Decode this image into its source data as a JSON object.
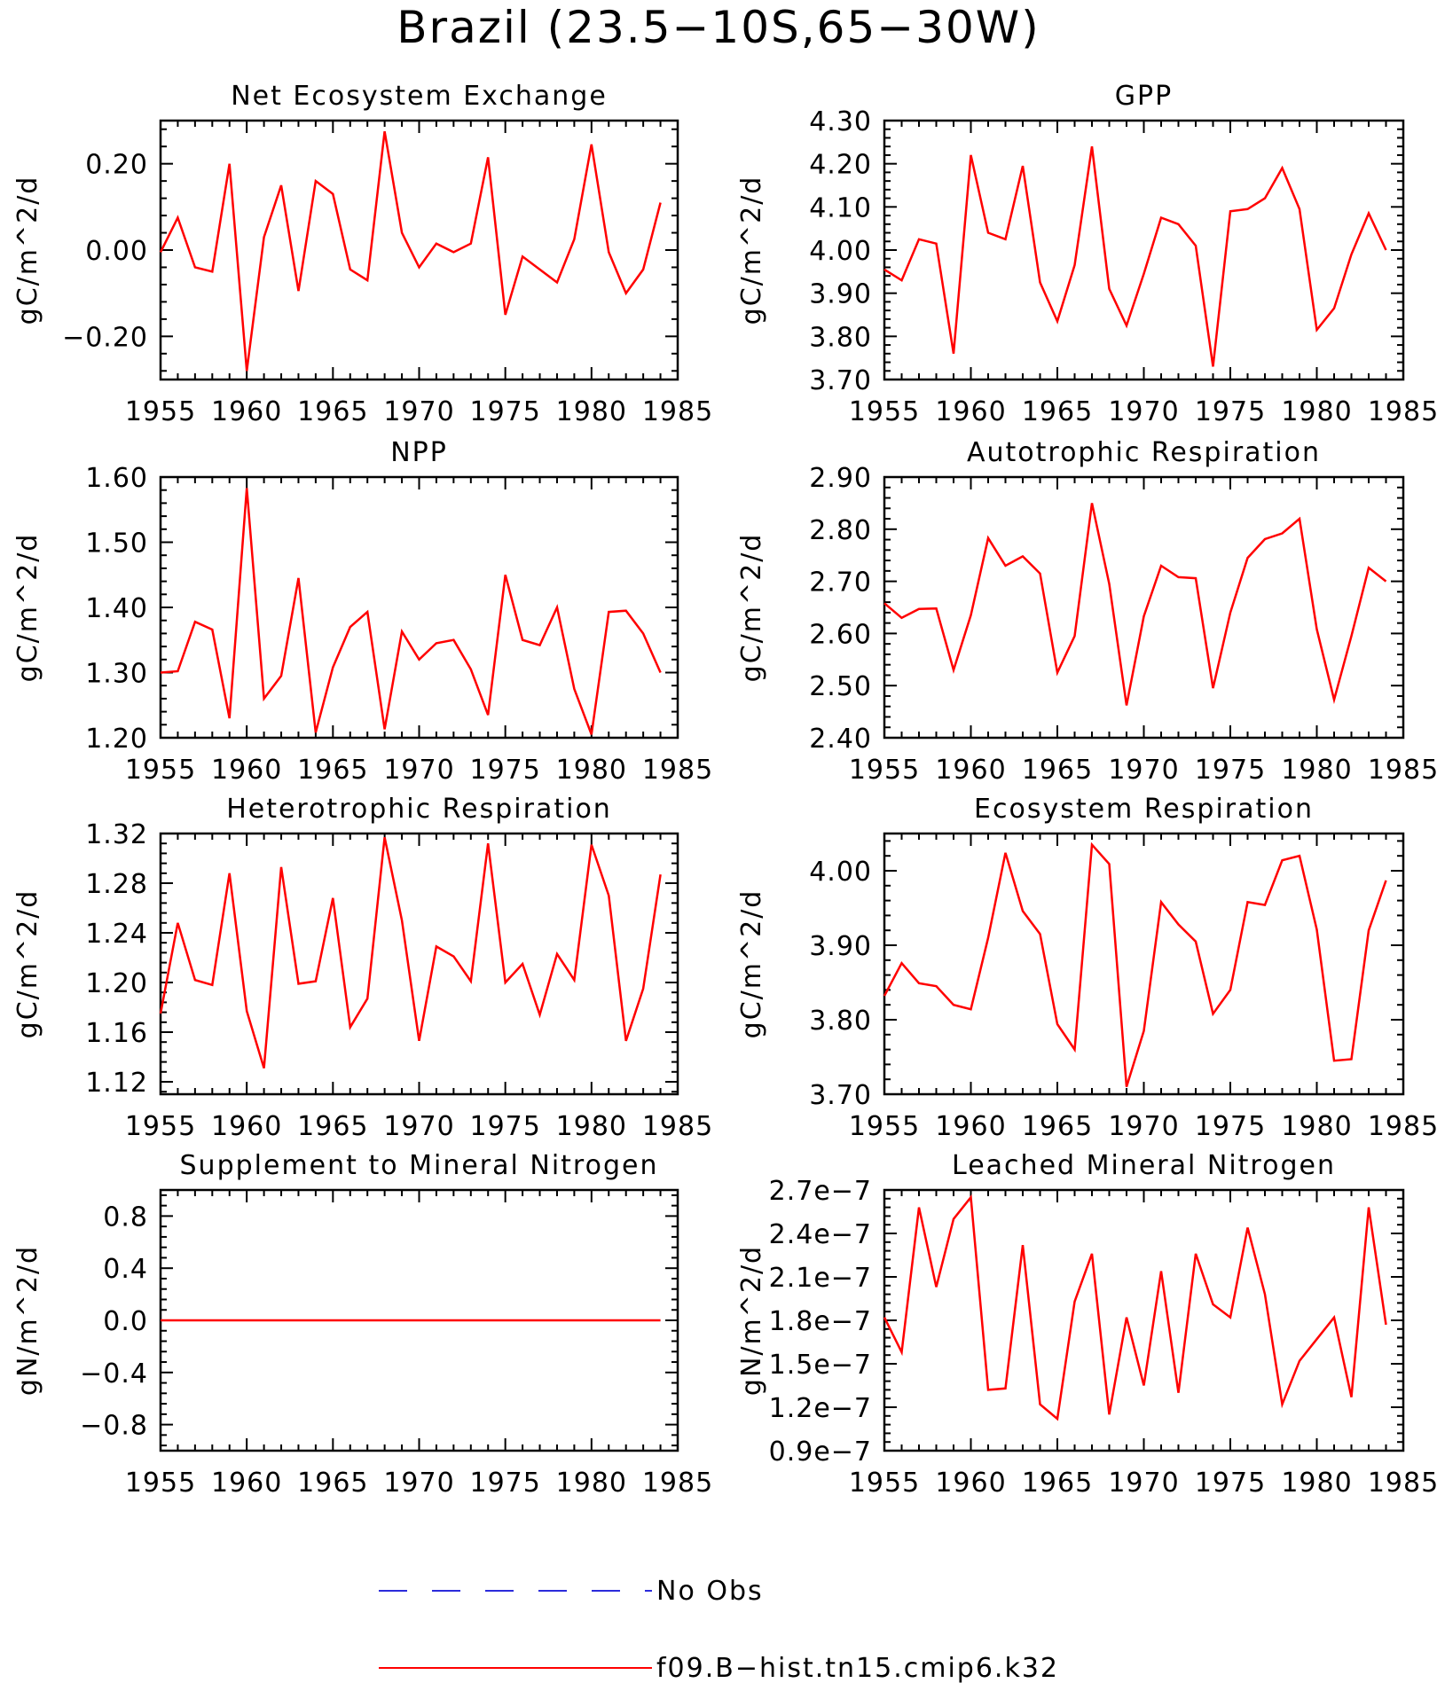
{
  "title": "Brazil (23.5−10S,65−30W)",
  "legend": {
    "entries": [
      {
        "label": "No Obs",
        "color": "#2b2bdb",
        "dash": true
      },
      {
        "label": "f09.B−hist.tn15.cmip6.k32",
        "color": "#ff0000",
        "dash": false
      }
    ]
  },
  "chart_data": [
    {
      "type": "line",
      "title": "Net Ecosystem Exchange",
      "ylabel": "gC/m^2/d",
      "xlim": [
        1955,
        1985
      ],
      "ylim": [
        -0.3,
        0.3
      ],
      "yticks": [
        -0.2,
        0.0,
        0.2
      ],
      "yticklabels": [
        "−0.20",
        "0.00",
        "0.20"
      ],
      "xticks": [
        1955,
        1960,
        1965,
        1970,
        1975,
        1980,
        1985
      ],
      "x": [
        1955,
        1956,
        1957,
        1958,
        1959,
        1960,
        1961,
        1962,
        1963,
        1964,
        1965,
        1966,
        1967,
        1968,
        1969,
        1970,
        1971,
        1972,
        1973,
        1974,
        1975,
        1976,
        1977,
        1978,
        1979,
        1980,
        1981,
        1982,
        1983,
        1984
      ],
      "series": [
        {
          "name": "f09.B−hist.tn15.cmip6.k32",
          "color": "#ff0000",
          "values": [
            -0.005,
            0.075,
            -0.04,
            -0.05,
            0.2,
            -0.28,
            0.03,
            0.15,
            -0.095,
            0.16,
            0.13,
            -0.045,
            -0.07,
            0.275,
            0.04,
            -0.04,
            0.015,
            -0.005,
            0.015,
            0.215,
            -0.15,
            -0.015,
            -0.045,
            -0.075,
            0.025,
            0.245,
            -0.005,
            -0.1,
            -0.045,
            0.11
          ]
        }
      ]
    },
    {
      "type": "line",
      "title": "GPP",
      "ylabel": "gC/m^2/d",
      "xlim": [
        1955,
        1985
      ],
      "ylim": [
        3.7,
        4.3
      ],
      "yticks": [
        3.7,
        3.8,
        3.9,
        4.0,
        4.1,
        4.2,
        4.3
      ],
      "yticklabels": [
        "3.70",
        "3.80",
        "3.90",
        "4.00",
        "4.10",
        "4.20",
        "4.30"
      ],
      "xticks": [
        1955,
        1960,
        1965,
        1970,
        1975,
        1980,
        1985
      ],
      "x": [
        1955,
        1956,
        1957,
        1958,
        1959,
        1960,
        1961,
        1962,
        1963,
        1964,
        1965,
        1966,
        1967,
        1968,
        1969,
        1970,
        1971,
        1972,
        1973,
        1974,
        1975,
        1976,
        1977,
        1978,
        1979,
        1980,
        1981,
        1982,
        1983,
        1984
      ],
      "series": [
        {
          "name": "f09.B−hist.tn15.cmip6.k32",
          "color": "#ff0000",
          "values": [
            3.955,
            3.93,
            4.025,
            4.015,
            3.76,
            4.22,
            4.04,
            4.025,
            4.195,
            3.925,
            3.835,
            3.965,
            4.24,
            3.91,
            3.825,
            3.945,
            4.075,
            4.06,
            4.01,
            3.73,
            4.09,
            4.095,
            4.12,
            4.19,
            4.095,
            3.815,
            3.865,
            3.99,
            4.085,
            4.0
          ]
        }
      ]
    },
    {
      "type": "line",
      "title": "NPP",
      "ylabel": "gC/m^2/d",
      "xlim": [
        1955,
        1985
      ],
      "ylim": [
        1.2,
        1.6
      ],
      "yticks": [
        1.2,
        1.3,
        1.4,
        1.5,
        1.6
      ],
      "yticklabels": [
        "1.20",
        "1.30",
        "1.40",
        "1.50",
        "1.60"
      ],
      "xticks": [
        1955,
        1960,
        1965,
        1970,
        1975,
        1980,
        1985
      ],
      "x": [
        1955,
        1956,
        1957,
        1958,
        1959,
        1960,
        1961,
        1962,
        1963,
        1964,
        1965,
        1966,
        1967,
        1968,
        1969,
        1970,
        1971,
        1972,
        1973,
        1974,
        1975,
        1976,
        1977,
        1978,
        1979,
        1980,
        1981,
        1982,
        1983,
        1984
      ],
      "series": [
        {
          "name": "f09.B−hist.tn15.cmip6.k32",
          "color": "#ff0000",
          "values": [
            1.3,
            1.302,
            1.378,
            1.366,
            1.23,
            1.583,
            1.26,
            1.295,
            1.445,
            1.208,
            1.308,
            1.37,
            1.393,
            1.213,
            1.363,
            1.32,
            1.345,
            1.35,
            1.305,
            1.235,
            1.45,
            1.35,
            1.342,
            1.4,
            1.275,
            1.205,
            1.393,
            1.395,
            1.36,
            1.3
          ]
        }
      ]
    },
    {
      "type": "line",
      "title": "Autotrophic Respiration",
      "ylabel": "gC/m^2/d",
      "xlim": [
        1955,
        1985
      ],
      "ylim": [
        2.4,
        2.9
      ],
      "yticks": [
        2.4,
        2.5,
        2.6,
        2.7,
        2.8,
        2.9
      ],
      "yticklabels": [
        "2.40",
        "2.50",
        "2.60",
        "2.70",
        "2.80",
        "2.90"
      ],
      "xticks": [
        1955,
        1960,
        1965,
        1970,
        1975,
        1980,
        1985
      ],
      "x": [
        1955,
        1956,
        1957,
        1958,
        1959,
        1960,
        1961,
        1962,
        1963,
        1964,
        1965,
        1966,
        1967,
        1968,
        1969,
        1970,
        1971,
        1972,
        1973,
        1974,
        1975,
        1976,
        1977,
        1978,
        1979,
        1980,
        1981,
        1982,
        1983,
        1984
      ],
      "series": [
        {
          "name": "f09.B−hist.tn15.cmip6.k32",
          "color": "#ff0000",
          "values": [
            2.658,
            2.63,
            2.647,
            2.648,
            2.53,
            2.635,
            2.783,
            2.73,
            2.748,
            2.715,
            2.525,
            2.595,
            2.85,
            2.695,
            2.462,
            2.633,
            2.73,
            2.708,
            2.706,
            2.495,
            2.64,
            2.745,
            2.781,
            2.792,
            2.82,
            2.608,
            2.473,
            2.595,
            2.726,
            2.7
          ]
        }
      ]
    },
    {
      "type": "line",
      "title": "Heterotrophic Respiration",
      "ylabel": "gC/m^2/d",
      "xlim": [
        1955,
        1985
      ],
      "ylim": [
        1.11,
        1.32
      ],
      "yticks": [
        1.12,
        1.16,
        1.2,
        1.24,
        1.28,
        1.32
      ],
      "yticklabels": [
        "1.12",
        "1.16",
        "1.20",
        "1.24",
        "1.28",
        "1.32"
      ],
      "xticks": [
        1955,
        1960,
        1965,
        1970,
        1975,
        1980,
        1985
      ],
      "x": [
        1955,
        1956,
        1957,
        1958,
        1959,
        1960,
        1961,
        1962,
        1963,
        1964,
        1965,
        1966,
        1967,
        1968,
        1969,
        1970,
        1971,
        1972,
        1973,
        1974,
        1975,
        1976,
        1977,
        1978,
        1979,
        1980,
        1981,
        1982,
        1983,
        1984
      ],
      "series": [
        {
          "name": "f09.B−hist.tn15.cmip6.k32",
          "color": "#ff0000",
          "values": [
            1.175,
            1.248,
            1.202,
            1.198,
            1.288,
            1.177,
            1.131,
            1.293,
            1.199,
            1.201,
            1.268,
            1.164,
            1.187,
            1.317,
            1.25,
            1.153,
            1.229,
            1.221,
            1.201,
            1.312,
            1.2,
            1.215,
            1.174,
            1.223,
            1.202,
            1.311,
            1.27,
            1.153,
            1.195,
            1.287
          ]
        }
      ]
    },
    {
      "type": "line",
      "title": "Ecosystem Respiration",
      "ylabel": "gC/m^2/d",
      "xlim": [
        1955,
        1985
      ],
      "ylim": [
        3.7,
        4.05
      ],
      "yticks": [
        3.7,
        3.8,
        3.9,
        4.0
      ],
      "yticklabels": [
        "3.70",
        "3.80",
        "3.90",
        "4.00"
      ],
      "xticks": [
        1955,
        1960,
        1965,
        1970,
        1975,
        1980,
        1985
      ],
      "x": [
        1955,
        1956,
        1957,
        1958,
        1959,
        1960,
        1961,
        1962,
        1963,
        1964,
        1965,
        1966,
        1967,
        1968,
        1969,
        1970,
        1971,
        1972,
        1973,
        1974,
        1975,
        1976,
        1977,
        1978,
        1979,
        1980,
        1981,
        1982,
        1983,
        1984
      ],
      "series": [
        {
          "name": "f09.B−hist.tn15.cmip6.k32",
          "color": "#ff0000",
          "values": [
            3.832,
            3.876,
            3.849,
            3.845,
            3.82,
            3.814,
            3.91,
            4.024,
            3.946,
            3.915,
            3.794,
            3.76,
            4.035,
            4.009,
            3.71,
            3.785,
            3.958,
            3.928,
            3.905,
            3.808,
            3.84,
            3.958,
            3.954,
            4.014,
            4.02,
            3.921,
            3.745,
            3.747,
            3.92,
            3.987
          ]
        }
      ]
    },
    {
      "type": "line",
      "title": "Supplement to Mineral Nitrogen",
      "ylabel": "gN/m^2/d",
      "xlim": [
        1955,
        1985
      ],
      "ylim": [
        -1.0,
        1.0
      ],
      "yticks": [
        -0.8,
        -0.4,
        0.0,
        0.4,
        0.8
      ],
      "yticklabels": [
        "−0.8",
        "−0.4",
        "0.0",
        "0.4",
        "0.8"
      ],
      "xticks": [
        1955,
        1960,
        1965,
        1970,
        1975,
        1980,
        1985
      ],
      "x": [
        1955,
        1956,
        1957,
        1958,
        1959,
        1960,
        1961,
        1962,
        1963,
        1964,
        1965,
        1966,
        1967,
        1968,
        1969,
        1970,
        1971,
        1972,
        1973,
        1974,
        1975,
        1976,
        1977,
        1978,
        1979,
        1980,
        1981,
        1982,
        1983,
        1984
      ],
      "series": [
        {
          "name": "f09.B−hist.tn15.cmip6.k32",
          "color": "#ff0000",
          "values": [
            0,
            0,
            0,
            0,
            0,
            0,
            0,
            0,
            0,
            0,
            0,
            0,
            0,
            0,
            0,
            0,
            0,
            0,
            0,
            0,
            0,
            0,
            0,
            0,
            0,
            0,
            0,
            0,
            0,
            0
          ]
        }
      ]
    },
    {
      "type": "line",
      "title": "Leached Mineral Nitrogen",
      "ylabel": "gN/m^2/d",
      "xlim": [
        1955,
        1985
      ],
      "ylim": [
        9e-08,
        2.7e-07
      ],
      "yticks": [
        9e-08,
        1.2e-07,
        1.5e-07,
        1.8e-07,
        2.1e-07,
        2.4e-07,
        2.7e-07
      ],
      "yticklabels": [
        "0.9e−7",
        "1.2e−7",
        "1.5e−7",
        "1.8e−7",
        "2.1e−7",
        "2.4e−7",
        "2.7e−7"
      ],
      "xticks": [
        1955,
        1960,
        1965,
        1970,
        1975,
        1980,
        1985
      ],
      "x": [
        1955,
        1956,
        1957,
        1958,
        1959,
        1960,
        1961,
        1962,
        1963,
        1964,
        1965,
        1966,
        1967,
        1968,
        1969,
        1970,
        1971,
        1972,
        1973,
        1974,
        1975,
        1976,
        1977,
        1978,
        1979,
        1980,
        1981,
        1982,
        1983,
        1984
      ],
      "series": [
        {
          "name": "f09.B−hist.tn15.cmip6.k32",
          "color": "#ff0000",
          "values": [
            1.82e-07,
            1.58e-07,
            2.58e-07,
            2.03e-07,
            2.5e-07,
            2.65e-07,
            1.32e-07,
            1.33e-07,
            2.32e-07,
            1.22e-07,
            1.12e-07,
            1.93e-07,
            2.26e-07,
            1.15e-07,
            1.82e-07,
            1.35e-07,
            2.14e-07,
            1.3e-07,
            2.26e-07,
            1.91e-07,
            1.82e-07,
            2.44e-07,
            1.98e-07,
            1.22e-07,
            1.52e-07,
            1.67e-07,
            1.82e-07,
            1.27e-07,
            2.58e-07,
            1.77e-07
          ]
        }
      ]
    }
  ]
}
